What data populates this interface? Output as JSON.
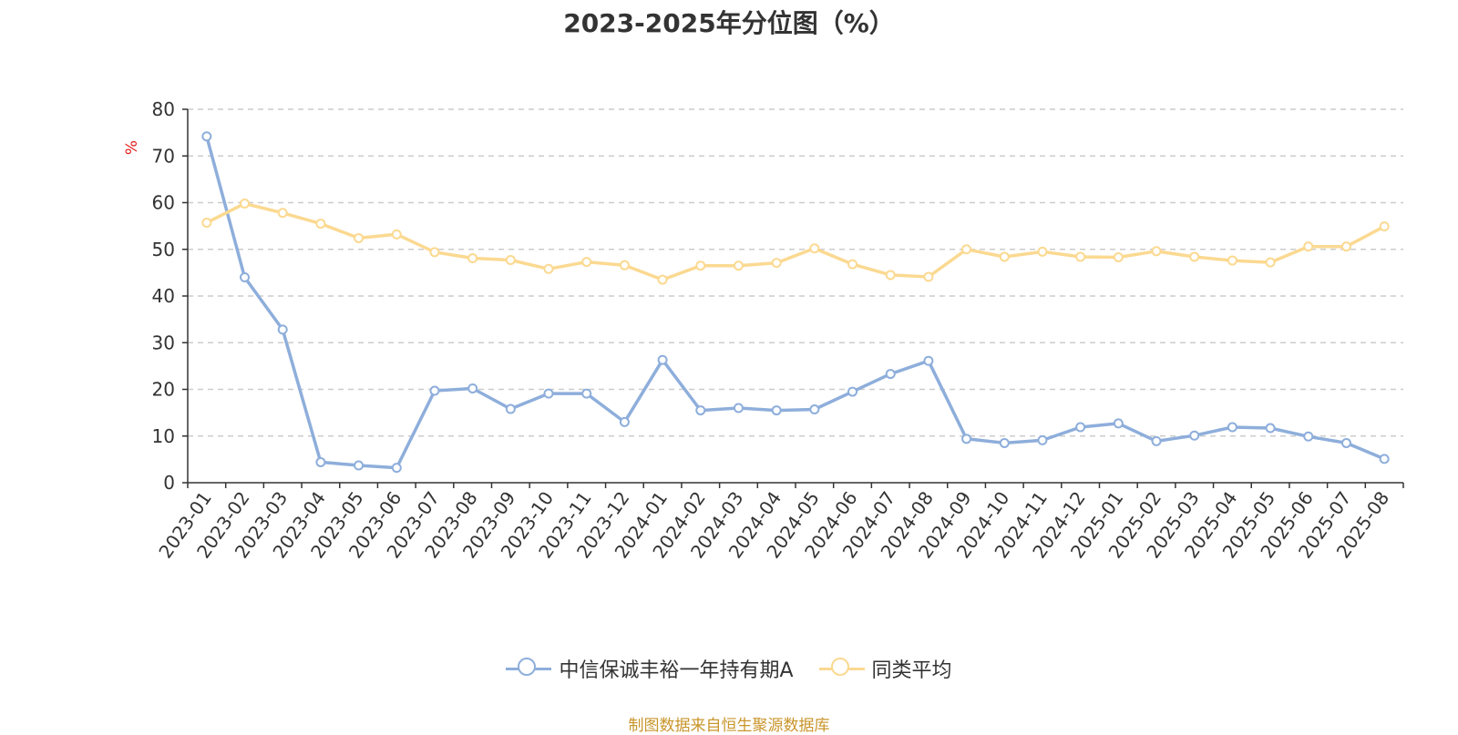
{
  "title": "2023-2025年分位图（%）",
  "source_note": "制图数据来自恒生聚源数据库",
  "chart_data": {
    "type": "line",
    "title": "2023-2025年分位图（%）",
    "ylabel": "%",
    "xlabel": "",
    "ylim": [
      0,
      80
    ],
    "yticks": [
      0,
      10,
      20,
      30,
      40,
      50,
      60,
      70,
      80
    ],
    "grid": true,
    "legend_position": "bottom",
    "categories": [
      "2023-01",
      "2023-02",
      "2023-03",
      "2023-04",
      "2023-05",
      "2023-06",
      "2023-07",
      "2023-08",
      "2023-09",
      "2023-10",
      "2023-11",
      "2023-12",
      "2024-01",
      "2024-02",
      "2024-03",
      "2024-04",
      "2024-05",
      "2024-06",
      "2024-07",
      "2024-08",
      "2024-09",
      "2024-10",
      "2024-11",
      "2024-12",
      "2025-01",
      "2025-02",
      "2025-03",
      "2025-04",
      "2025-05",
      "2025-06",
      "2025-07",
      "2025-08"
    ],
    "series": [
      {
        "name": "中信保诚丰裕一年持有期A",
        "color": "#8eaedb",
        "values": [
          74.2,
          44.0,
          32.8,
          4.4,
          3.7,
          3.2,
          19.7,
          20.2,
          15.8,
          19.1,
          19.1,
          13.0,
          26.3,
          15.5,
          16.0,
          15.5,
          15.7,
          19.5,
          23.3,
          26.1,
          9.4,
          8.5,
          9.1,
          11.9,
          12.7,
          8.9,
          10.1,
          11.9,
          11.7,
          9.9,
          8.5,
          5.1
        ]
      },
      {
        "name": "同类平均",
        "color": "#fbd991",
        "values": [
          55.7,
          59.8,
          57.8,
          55.5,
          52.4,
          53.2,
          49.4,
          48.1,
          47.7,
          45.8,
          47.3,
          46.6,
          43.5,
          46.5,
          46.5,
          47.1,
          50.2,
          46.8,
          44.5,
          44.1,
          50.0,
          48.4,
          49.5,
          48.4,
          48.3,
          49.6,
          48.4,
          47.6,
          47.2,
          50.6,
          50.6,
          54.9
        ]
      }
    ]
  }
}
